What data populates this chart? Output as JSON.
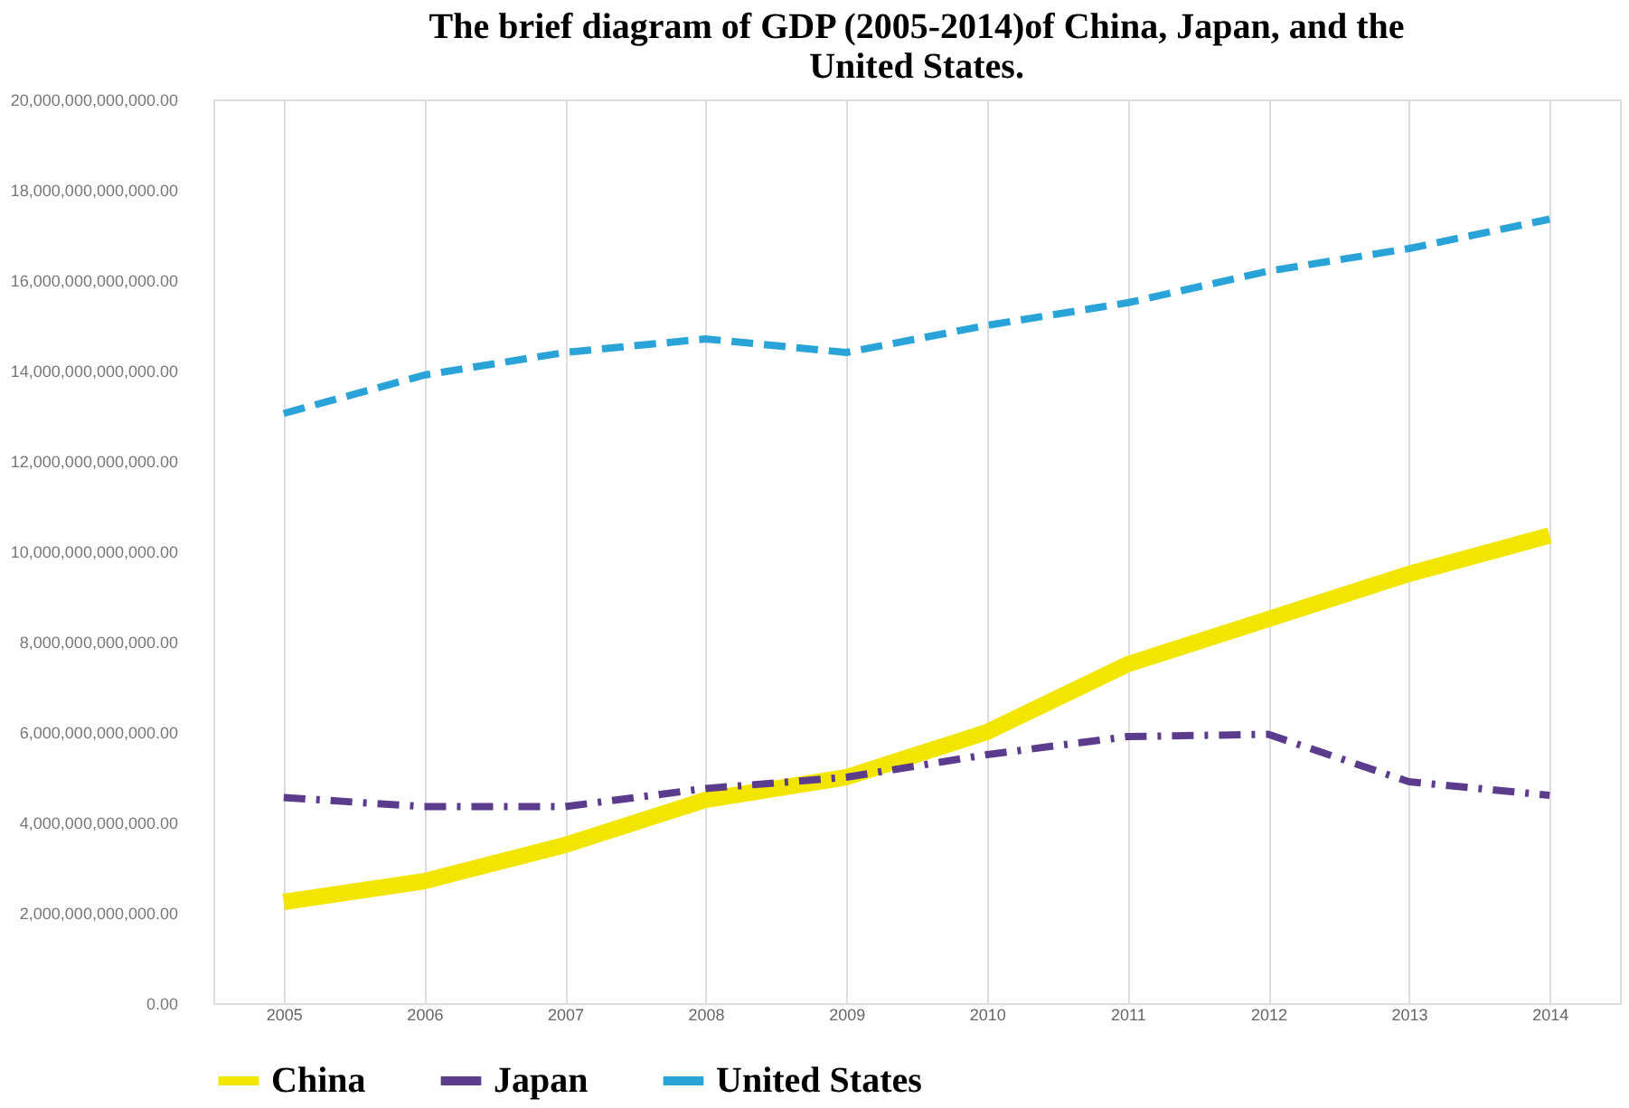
{
  "chart_data": {
    "type": "line",
    "title": [
      "The brief diagram of GDP (2005-2014)of China, Japan, and the",
      "United States."
    ],
    "categories": [
      "2005",
      "2006",
      "2007",
      "2008",
      "2009",
      "2010",
      "2011",
      "2012",
      "2013",
      "2014"
    ],
    "series": [
      {
        "name": "China",
        "color": "#f2e600",
        "line_style": "solid",
        "values": [
          2240000000000,
          2700000000000,
          3500000000000,
          4500000000000,
          5000000000000,
          6000000000000,
          7500000000000,
          8500000000000,
          9500000000000,
          10350000000000
        ]
      },
      {
        "name": "Japan",
        "color": "#5a3b8c",
        "line_style": "dashdot",
        "values": [
          4550000000000,
          4350000000000,
          4350000000000,
          4750000000000,
          5000000000000,
          5500000000000,
          5900000000000,
          5950000000000,
          4900000000000,
          4600000000000
        ]
      },
      {
        "name": "United States",
        "color": "#2aa3d8",
        "line_style": "dashed",
        "values": [
          13050000000000,
          13900000000000,
          14400000000000,
          14700000000000,
          14400000000000,
          15000000000000,
          15500000000000,
          16200000000000,
          16700000000000,
          17350000000000
        ]
      }
    ],
    "ylim": [
      0,
      20000000000000
    ],
    "yticks": [
      {
        "value": 0,
        "label": "0.00"
      },
      {
        "value": 2000000000000,
        "label": "2,000,000,000,000.00"
      },
      {
        "value": 4000000000000,
        "label": "4,000,000,000,000.00"
      },
      {
        "value": 6000000000000,
        "label": "6,000,000,000,000.00"
      },
      {
        "value": 8000000000000,
        "label": "8,000,000,000,000.00"
      },
      {
        "value": 10000000000000,
        "label": "10,000,000,000,000.00"
      },
      {
        "value": 12000000000000,
        "label": "12,000,000,000,000.00"
      },
      {
        "value": 14000000000000,
        "label": "14,000,000,000,000.00"
      },
      {
        "value": 16000000000000,
        "label": "16,000,000,000,000.00"
      },
      {
        "value": 18000000000000,
        "label": "18,000,000,000,000.00"
      },
      {
        "value": 20000000000000,
        "label": "20,000,000,000,000.00"
      }
    ],
    "grid": "x",
    "legend": "bottom",
    "marker": "none"
  }
}
